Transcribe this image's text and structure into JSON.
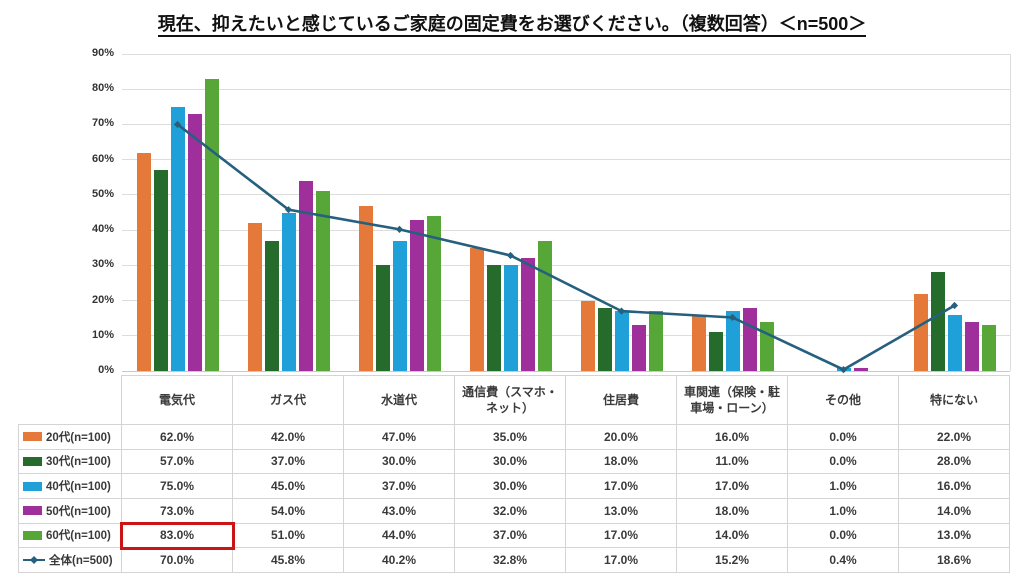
{
  "title": "現在、抑えたいと感じているご家庭の固定費をお選びください。（複数回答）＜n=500＞",
  "chart_data": {
    "type": "bar",
    "title": "現在、抑えたいと感じているご家庭の固定費をお選びください。（複数回答）＜n=500＞",
    "categories": [
      "電気代",
      "ガス代",
      "水道代",
      "通信費（スマホ・ネット）",
      "住居費",
      "車関連（保険・駐車場・ローン）",
      "その他",
      "特にない"
    ],
    "series": [
      {
        "name": "20代(n=100)",
        "type": "bar",
        "color": "#E4793A",
        "values": [
          62.0,
          42.0,
          47.0,
          35.0,
          20.0,
          16.0,
          0.0,
          22.0
        ]
      },
      {
        "name": "30代(n=100)",
        "type": "bar",
        "color": "#256B2B",
        "values": [
          57.0,
          37.0,
          30.0,
          30.0,
          18.0,
          11.0,
          0.0,
          28.0
        ]
      },
      {
        "name": "40代(n=100)",
        "type": "bar",
        "color": "#1FA0D8",
        "values": [
          75.0,
          45.0,
          37.0,
          30.0,
          17.0,
          17.0,
          1.0,
          16.0
        ]
      },
      {
        "name": "50代(n=100)",
        "type": "bar",
        "color": "#9F309B",
        "values": [
          73.0,
          54.0,
          43.0,
          32.0,
          13.0,
          18.0,
          1.0,
          14.0
        ]
      },
      {
        "name": "60代(n=100)",
        "type": "bar",
        "color": "#56A737",
        "values": [
          83.0,
          51.0,
          44.0,
          37.0,
          17.0,
          14.0,
          0.0,
          13.0
        ]
      },
      {
        "name": "全体(n=500)",
        "type": "line",
        "color": "#25607F",
        "values": [
          70.0,
          45.8,
          40.2,
          32.8,
          17.0,
          15.2,
          0.4,
          18.6
        ]
      }
    ],
    "ylim": [
      0,
      90
    ],
    "ytick_step": 10,
    "ytick_labels": [
      "0%",
      "10%",
      "20%",
      "30%",
      "40%",
      "50%",
      "60%",
      "70%",
      "80%",
      "90%"
    ],
    "value_suffix": "%",
    "grid": true,
    "legend_position": "table-left-column"
  },
  "highlight": {
    "series": "60代(n=100)",
    "category": "電気代",
    "value_label": "83.0%",
    "color": "#CB1515"
  },
  "colors": {
    "grid": "#DDDDDD",
    "axis": "#C9C9C9",
    "table_border": "#D4D4D4",
    "text": "#3a3a3a",
    "title_text": "#111111"
  }
}
